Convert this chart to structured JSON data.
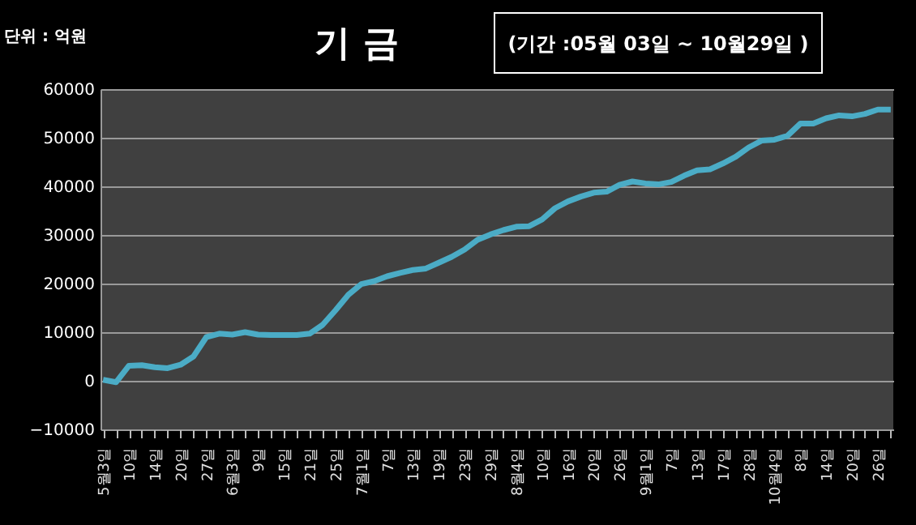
{
  "chart_data": {
    "type": "line",
    "title": "기 금",
    "ylabel": "단위 : 억원",
    "annotations": [
      "(기간 :05월 03일 ~ 10월29일 )"
    ],
    "categories": [
      "5월3일",
      null,
      "10일",
      null,
      "14일",
      null,
      "20일",
      null,
      "27일",
      null,
      "6월3일",
      null,
      "9일",
      null,
      "15일",
      null,
      "21일",
      null,
      "25일",
      null,
      "7월1일",
      null,
      "7일",
      null,
      "13일",
      null,
      "19일",
      null,
      "23일",
      null,
      "29일",
      null,
      "8월4일",
      null,
      "10일",
      null,
      "16일",
      null,
      "20일",
      null,
      "26일",
      null,
      "9월1일",
      null,
      "7일",
      null,
      "13일",
      null,
      "17일",
      null,
      "28일",
      null,
      "10월4일",
      null,
      "8일",
      null,
      "14일",
      null,
      "20일",
      null,
      "26일",
      null
    ],
    "series": [
      {
        "color": "#4bacc6",
        "values": [
          200,
          -300,
          3100,
          3200,
          2800,
          2600,
          3300,
          5000,
          9000,
          9700,
          9500,
          10000,
          9500,
          9400,
          9400,
          9400,
          9700,
          11500,
          14500,
          17700,
          19900,
          20500,
          21500,
          22200,
          22800,
          23100,
          24300,
          25500,
          27000,
          29000,
          30100,
          31000,
          31700,
          31800,
          33200,
          35500,
          36900,
          37900,
          38700,
          38900,
          40300,
          41000,
          40600,
          40400,
          40900,
          42200,
          43300,
          43500,
          44700,
          46100,
          48000,
          49400,
          49600,
          50400,
          52900,
          52900,
          54000,
          54600,
          54400,
          54900,
          55800,
          55800
        ]
      }
    ],
    "ylim": [
      -10000,
      60000
    ],
    "yticks": [
      -10000,
      0,
      10000,
      20000,
      30000,
      40000,
      50000,
      60000
    ],
    "grid": "y",
    "line_style": "solid"
  }
}
